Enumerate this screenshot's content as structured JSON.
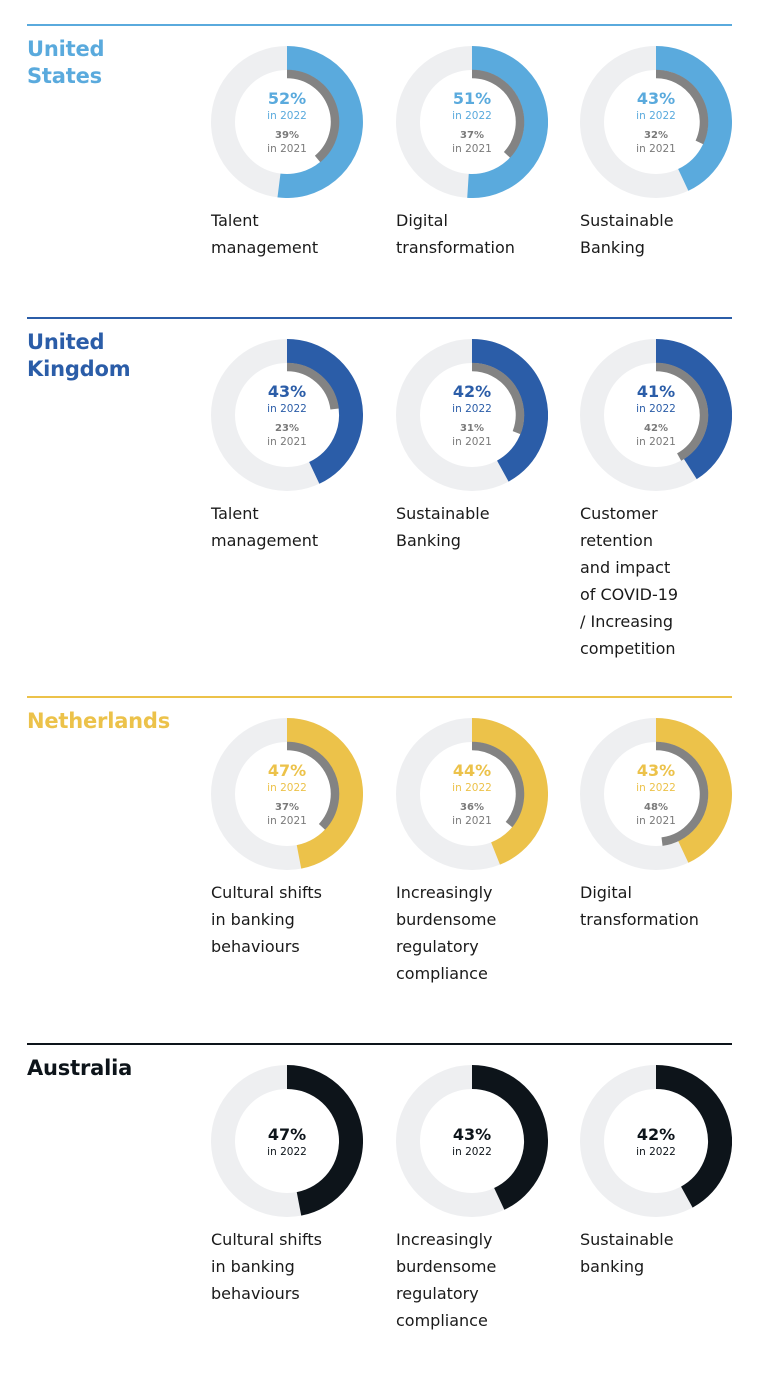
{
  "chart_data": [
    {
      "country": "United States",
      "title_lines": [
        "United",
        "States"
      ],
      "color": "#5aaadd",
      "type": "donut",
      "items": [
        {
          "label_lines": [
            "Talent",
            "management"
          ],
          "value_2022": 52,
          "value_2021": 39,
          "text_2022": "52%",
          "sub_2022": "in 2022",
          "text_2021": "39%",
          "sub_2021": "in 2021"
        },
        {
          "label_lines": [
            "Digital",
            "transformation"
          ],
          "value_2022": 51,
          "value_2021": 37,
          "text_2022": "51%",
          "sub_2022": "in 2022",
          "text_2021": "37%",
          "sub_2021": "in 2021"
        },
        {
          "label_lines": [
            "Sustainable",
            "Banking"
          ],
          "value_2022": 43,
          "value_2021": 32,
          "text_2022": "43%",
          "sub_2022": "in 2022",
          "text_2021": "32%",
          "sub_2021": "in 2021"
        }
      ]
    },
    {
      "country": "United Kingdom",
      "title_lines": [
        "United",
        "Kingdom"
      ],
      "color": "#2b5da8",
      "type": "donut",
      "items": [
        {
          "label_lines": [
            "Talent",
            "management"
          ],
          "value_2022": 43,
          "value_2021": 23,
          "text_2022": "43%",
          "sub_2022": "in 2022",
          "text_2021": "23%",
          "sub_2021": "in 2021"
        },
        {
          "label_lines": [
            "Sustainable",
            "Banking"
          ],
          "value_2022": 42,
          "value_2021": 31,
          "text_2022": "42%",
          "sub_2022": "in 2022",
          "text_2021": "31%",
          "sub_2021": "in 2021"
        },
        {
          "label_lines": [
            "Customer",
            "retention",
            "and impact",
            "of COVID-19",
            "/ Increasing",
            "competition"
          ],
          "value_2022": 41,
          "value_2021": 42,
          "text_2022": "41%",
          "sub_2022": "in 2022",
          "text_2021": "42%",
          "sub_2021": "in 2021"
        }
      ]
    },
    {
      "country": "Netherlands",
      "title_lines": [
        "Netherlands"
      ],
      "color": "#ecc24a",
      "type": "donut",
      "items": [
        {
          "label_lines": [
            "Cultural shifts",
            "in banking",
            "behaviours"
          ],
          "value_2022": 47,
          "value_2021": 37,
          "text_2022": "47%",
          "sub_2022": "in 2022",
          "text_2021": "37%",
          "sub_2021": "in 2021"
        },
        {
          "label_lines": [
            "Increasingly",
            "burdensome",
            "regulatory",
            "compliance"
          ],
          "value_2022": 44,
          "value_2021": 36,
          "text_2022": "44%",
          "sub_2022": "in 2022",
          "text_2021": "36%",
          "sub_2021": "in 2021"
        },
        {
          "label_lines": [
            "Digital",
            "transformation"
          ],
          "value_2022": 43,
          "value_2021": 48,
          "text_2022": "43%",
          "sub_2022": "in 2022",
          "text_2021": "48%",
          "sub_2021": "in 2021"
        }
      ]
    },
    {
      "country": "Australia",
      "title_lines": [
        "Australia"
      ],
      "color": "#0d141a",
      "type": "donut",
      "items": [
        {
          "label_lines": [
            "Cultural shifts",
            "in banking",
            "behaviours"
          ],
          "value_2022": 47,
          "value_2021": null,
          "text_2022": "47%",
          "sub_2022": "in 2022"
        },
        {
          "label_lines": [
            "Increasingly",
            "burdensome",
            "regulatory",
            "compliance"
          ],
          "value_2022": 43,
          "value_2021": null,
          "text_2022": "43%",
          "sub_2022": "in 2022"
        },
        {
          "label_lines": [
            "Sustainable",
            "banking"
          ],
          "value_2022": 42,
          "value_2021": null,
          "text_2022": "42%",
          "sub_2022": "in 2022"
        }
      ]
    }
  ],
  "colors": {
    "track": "#eeeff1",
    "inner_arc_2021": "#838383"
  }
}
